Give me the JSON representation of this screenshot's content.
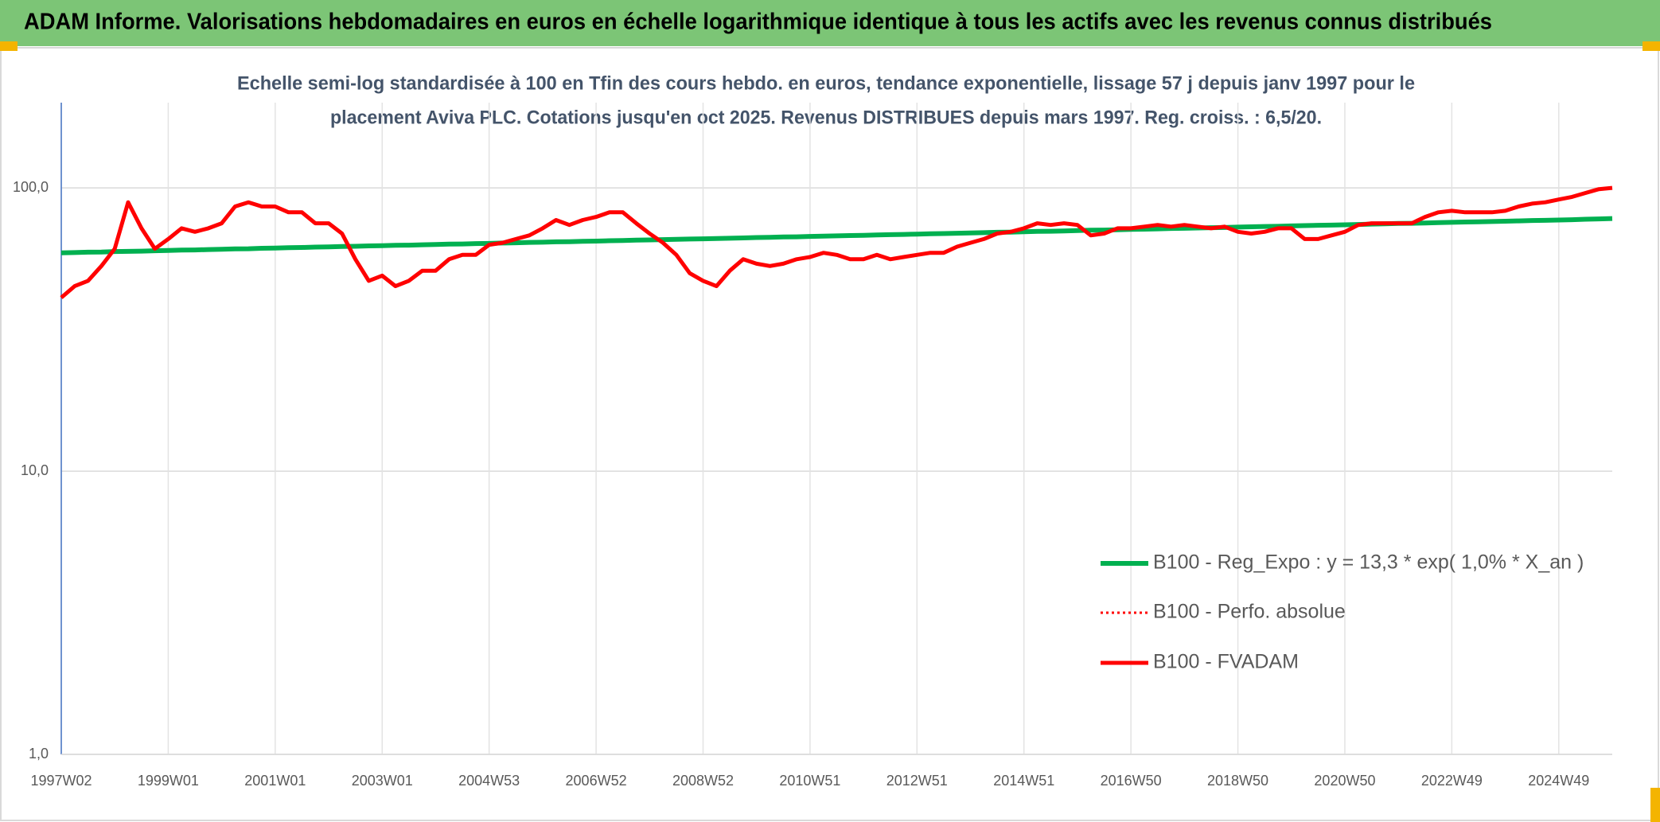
{
  "chart_data": {
    "type": "line",
    "title": "ADAM Informe. Valorisations hebdomadaires en euros en échelle logarithmique identique à tous les actifs avec les revenus connus distribués",
    "subtitle": [
      "Echelle semi-log standardisée à 100 en Tfin des cours hebdo. en euros, tendance exponentielle, lissage 57 j depuis janv 1997 pour le",
      "placement Aviva PLC. Cotations jusqu'en oct 2025. Revenus DISTRIBUES depuis mars 1997. Reg. croiss. : 6,5/20."
    ],
    "log_scale": true,
    "grid": true,
    "legend": "right",
    "ylim": [
      1,
      200
    ],
    "yticks": [
      {
        "value": 1,
        "label": "1,0"
      },
      {
        "value": 10,
        "label": "10,0"
      },
      {
        "value": 100,
        "label": "100,0"
      }
    ],
    "categories": [
      "1997W02",
      null,
      null,
      null,
      null,
      null,
      null,
      null,
      "1999W01",
      null,
      null,
      null,
      null,
      null,
      null,
      null,
      "2001W01",
      null,
      null,
      null,
      null,
      null,
      null,
      null,
      "2003W01",
      null,
      null,
      null,
      null,
      null,
      null,
      null,
      "2004W53",
      null,
      null,
      null,
      null,
      null,
      null,
      null,
      "2006W52",
      null,
      null,
      null,
      null,
      null,
      null,
      null,
      "2008W52",
      null,
      null,
      null,
      null,
      null,
      null,
      null,
      "2010W51",
      null,
      null,
      null,
      null,
      null,
      null,
      null,
      "2012W51",
      null,
      null,
      null,
      null,
      null,
      null,
      null,
      "2014W51",
      null,
      null,
      null,
      null,
      null,
      null,
      null,
      "2016W50",
      null,
      null,
      null,
      null,
      null,
      null,
      null,
      "2018W50",
      null,
      null,
      null,
      null,
      null,
      null,
      null,
      "2020W50",
      null,
      null,
      null,
      null,
      null,
      null,
      null,
      "2022W49",
      null,
      null,
      null,
      null,
      null,
      null,
      null,
      "2024W49",
      null,
      null,
      null,
      null
    ],
    "series": [
      {
        "name": "B100 - Reg_Expo : y = 13,3 * exp( 1,0% *  X_an )",
        "color": "#00b050",
        "style": "solid",
        "width": 6,
        "values": [
          59.0,
          59.1,
          59.3,
          59.4,
          59.6,
          59.7,
          59.8,
          60.0,
          60.1,
          60.3,
          60.4,
          60.6,
          60.7,
          60.9,
          61.0,
          61.2,
          61.3,
          61.5,
          61.6,
          61.8,
          61.9,
          62.1,
          62.2,
          62.4,
          62.5,
          62.7,
          62.8,
          63.0,
          63.1,
          63.3,
          63.4,
          63.6,
          63.7,
          63.9,
          64.0,
          64.2,
          64.3,
          64.5,
          64.6,
          64.8,
          64.9,
          65.1,
          65.2,
          65.4,
          65.5,
          65.7,
          65.8,
          66.0,
          66.1,
          66.3,
          66.4,
          66.6,
          66.8,
          66.9,
          67.1,
          67.2,
          67.4,
          67.6,
          67.7,
          67.9,
          68.0,
          68.2,
          68.4,
          68.5,
          68.7,
          68.9,
          69.0,
          69.2,
          69.3,
          69.5,
          69.7,
          69.8,
          70.0,
          70.2,
          70.3,
          70.5,
          70.7,
          70.9,
          71.0,
          71.2,
          71.4,
          71.5,
          71.7,
          71.9,
          72.0,
          72.2,
          72.4,
          72.5,
          72.7,
          72.9,
          73.1,
          73.2,
          73.4,
          73.6,
          73.8,
          73.9,
          74.1,
          74.3,
          74.5,
          74.7,
          74.9,
          75.0,
          75.2,
          75.4,
          75.6,
          75.8,
          75.9,
          76.1,
          76.3,
          76.5,
          76.7,
          76.8,
          77.0,
          77.2,
          77.5,
          77.7,
          78.0
        ]
      },
      {
        "name": "B100 - Perfo. absolue",
        "color": "#ff0000",
        "style": "dotted",
        "width": 3,
        "values": [
          41,
          45,
          47,
          53,
          61,
          89,
          72,
          61,
          66,
          72,
          70,
          72,
          75,
          86,
          89,
          86,
          86,
          82,
          82,
          75,
          75,
          69,
          56,
          47,
          49,
          45,
          47,
          51,
          51,
          56,
          58,
          58,
          63,
          64,
          66,
          68,
          72,
          77,
          74,
          77,
          79,
          82,
          82,
          75,
          69,
          64,
          58,
          50,
          47,
          45,
          51,
          56,
          54,
          53,
          54,
          56,
          57,
          59,
          58,
          56,
          56,
          58,
          56,
          57,
          58,
          59,
          59,
          62,
          64,
          66,
          69,
          70,
          72,
          75,
          74,
          75,
          74,
          68,
          69,
          72,
          72,
          73,
          74,
          73,
          74,
          73,
          72,
          73,
          70,
          69,
          70,
          72,
          72,
          66,
          66,
          68,
          70,
          74,
          75,
          75,
          75,
          75,
          79,
          82,
          83,
          82,
          82,
          82,
          83,
          86,
          88,
          89,
          91,
          93,
          96,
          99,
          100
        ]
      },
      {
        "name": "B100 - FVADAM",
        "color": "#ff0000",
        "style": "solid",
        "width": 5,
        "values": [
          41,
          45,
          47,
          53,
          61,
          89,
          72,
          61,
          66,
          72,
          70,
          72,
          75,
          86,
          89,
          86,
          86,
          82,
          82,
          75,
          75,
          69,
          56,
          47,
          49,
          45,
          47,
          51,
          51,
          56,
          58,
          58,
          63,
          64,
          66,
          68,
          72,
          77,
          74,
          77,
          79,
          82,
          82,
          75,
          69,
          64,
          58,
          50,
          47,
          45,
          51,
          56,
          54,
          53,
          54,
          56,
          57,
          59,
          58,
          56,
          56,
          58,
          56,
          57,
          58,
          59,
          59,
          62,
          64,
          66,
          69,
          70,
          72,
          75,
          74,
          75,
          74,
          68,
          69,
          72,
          72,
          73,
          74,
          73,
          74,
          73,
          72,
          73,
          70,
          69,
          70,
          72,
          72,
          66,
          66,
          68,
          70,
          74,
          75,
          75,
          75,
          75,
          79,
          82,
          83,
          82,
          82,
          82,
          83,
          86,
          88,
          89,
          91,
          93,
          96,
          99,
          100
        ]
      }
    ]
  }
}
